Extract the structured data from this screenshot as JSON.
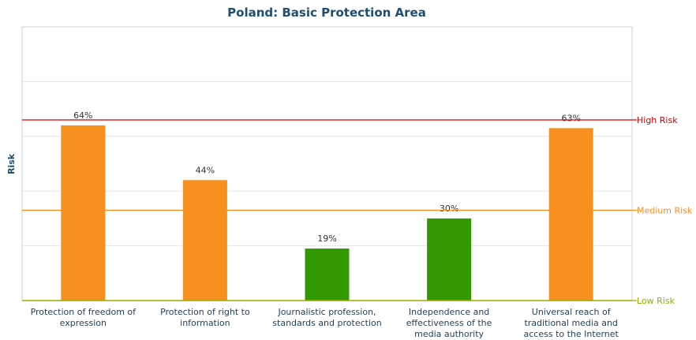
{
  "chart_data": {
    "type": "bar",
    "title": "Poland: Basic Protection Area",
    "xlabel": "",
    "ylabel": "Risk",
    "ylim": [
      0,
      100
    ],
    "grid": true,
    "categories": [
      [
        "Protection of freedom of",
        "expression"
      ],
      [
        "Protection of right to",
        "information"
      ],
      [
        "Journalistic profession,",
        "standards and protection"
      ],
      [
        "Independence and",
        "effectiveness of the",
        "media authority"
      ],
      [
        "Universal reach of",
        "traditional media and",
        "access to the Internet"
      ]
    ],
    "values": [
      64,
      44,
      19,
      30,
      63
    ],
    "data_labels": [
      "64%",
      "44%",
      "19%",
      "30%",
      "63%"
    ],
    "bar_colors": [
      "#f7901e",
      "#f7901e",
      "#339900",
      "#339900",
      "#f7901e"
    ],
    "reference_lines": [
      {
        "label": "High Risk",
        "value": 66,
        "color": "#cc0000"
      },
      {
        "label": "Medium Risk",
        "value": 33,
        "color": "#f7901e"
      },
      {
        "label": "Low Risk",
        "value": 0,
        "color": "#99aa00"
      }
    ]
  }
}
